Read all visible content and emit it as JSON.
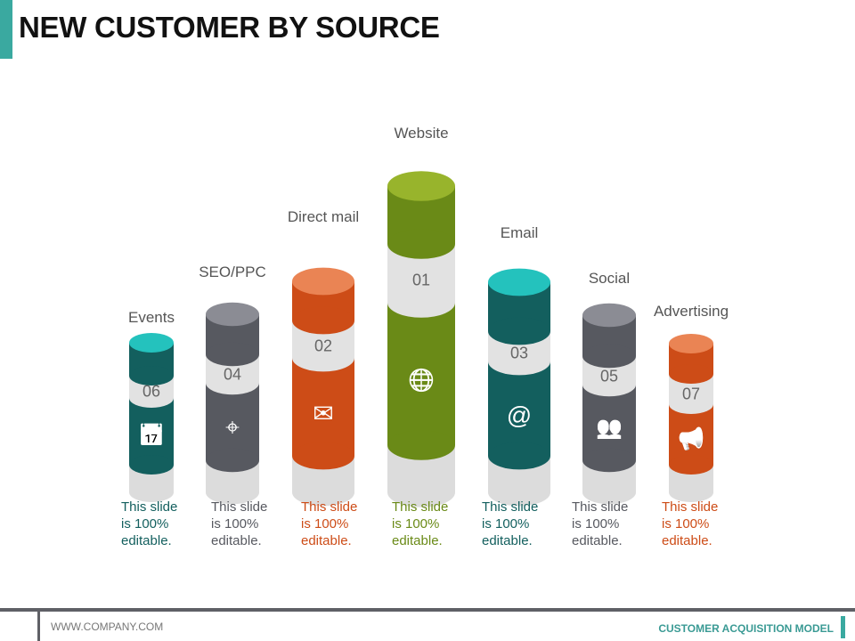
{
  "title": "NEW CUSTOMER BY SOURCE",
  "colors": {
    "band": "#e2e2e2",
    "teal": [
      "#135f5e",
      "#24c2bd"
    ],
    "gray": [
      "#575960",
      "#8b8c94"
    ],
    "orange": [
      "#cd4c17",
      "#ea8454"
    ],
    "green": [
      "#6a8a17",
      "#98b42c"
    ]
  },
  "items": [
    {
      "label": "Events",
      "number": "06",
      "icon": "calendar-icon",
      "glyph": "📅",
      "color": "teal",
      "text": [
        "This slide",
        "is 100%",
        "editable."
      ]
    },
    {
      "label": "SEO/PPC",
      "number": "04",
      "icon": "target-icon",
      "glyph": "⌖",
      "color": "gray",
      "text": [
        "This slide",
        "is 100%",
        "editable."
      ]
    },
    {
      "label": "Direct mail",
      "number": "02",
      "icon": "envelope-icon",
      "glyph": "✉",
      "color": "orange",
      "text": [
        "This slide",
        "is 100%",
        "editable."
      ]
    },
    {
      "label": "Website",
      "number": "01",
      "icon": "globe-icon",
      "glyph": "🌐",
      "color": "green",
      "text": [
        "This slide",
        "is 100%",
        "editable."
      ]
    },
    {
      "label": "Email",
      "number": "03",
      "icon": "at-sign-icon",
      "glyph": "@",
      "color": "teal",
      "text": [
        "This slide",
        "is 100%",
        "editable."
      ]
    },
    {
      "label": "Social",
      "number": "05",
      "icon": "people-icon",
      "glyph": "👥",
      "color": "gray",
      "text": [
        "This slide",
        "is 100%",
        "editable."
      ]
    },
    {
      "label": "Advertising",
      "number": "07",
      "icon": "megaphone-icon",
      "glyph": "📢",
      "color": "orange",
      "text": [
        "This slide",
        "is 100%",
        "editable."
      ]
    }
  ],
  "footer": {
    "left": "WWW.COMPANY.COM",
    "right": "CUSTOMER ACQUISITION MODEL"
  }
}
